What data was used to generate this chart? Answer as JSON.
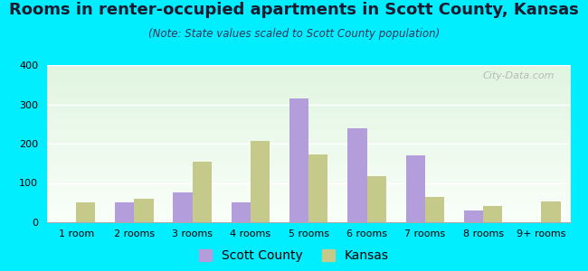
{
  "title": "Rooms in renter-occupied apartments in Scott County, Kansas",
  "subtitle": "(Note: State values scaled to Scott County population)",
  "categories": [
    "1 room",
    "2 rooms",
    "3 rooms",
    "4 rooms",
    "5 rooms",
    "6 rooms",
    "7 rooms",
    "8 rooms",
    "9+ rooms"
  ],
  "scott_county": [
    0,
    50,
    75,
    50,
    315,
    240,
    170,
    30,
    0
  ],
  "kansas": [
    50,
    60,
    155,
    207,
    173,
    117,
    65,
    42,
    52
  ],
  "scott_county_color": "#b39ddb",
  "kansas_color": "#c5c98a",
  "background_outer": "#00eeff",
  "ylim": [
    0,
    400
  ],
  "yticks": [
    0,
    100,
    200,
    300,
    400
  ],
  "title_fontsize": 13,
  "subtitle_fontsize": 8.5,
  "legend_fontsize": 10,
  "axis_fontsize": 8,
  "watermark": "City-Data.com"
}
